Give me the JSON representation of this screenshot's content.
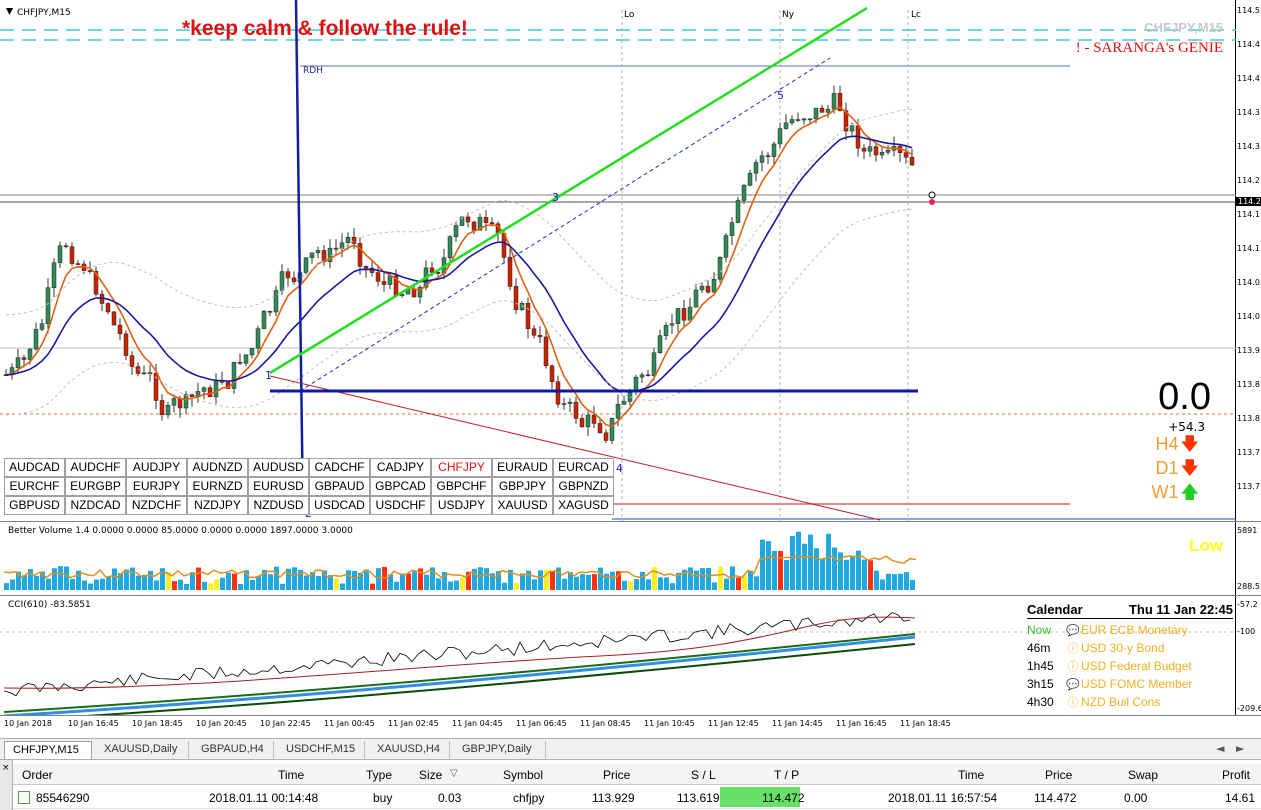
{
  "chart": {
    "title": "CHFJPY,M15",
    "banner": "*keep calm & follow the rule!",
    "watermark": "CHFJPY,M15",
    "genie": "! - SARANGA's GENIE",
    "rdh_label": "RDH",
    "sessions": [
      "Lo",
      "Ny",
      "Lc"
    ],
    "wave_labels": [
      "1",
      "2",
      "3",
      "4",
      "5"
    ],
    "big_value": "0.0",
    "pips": "+54.3",
    "timeframes": [
      {
        "label": "H4",
        "direction": "down",
        "color": "#ff3300"
      },
      {
        "label": "D1",
        "direction": "down",
        "color": "#ff3300"
      },
      {
        "label": "W1",
        "direction": "up",
        "color": "#22cc22"
      }
    ],
    "price_ticks": [
      "114.5",
      "114.4",
      "114.4",
      "114.3",
      "114.3",
      "114.2",
      "114.1",
      "114.1",
      "114.0",
      "114.0",
      "113.9",
      "113.8",
      "113.8",
      "113.7",
      "113.7"
    ],
    "current_price": "114.2",
    "symbols": [
      "AUDCAD",
      "AUDCHF",
      "AUDJPY",
      "AUDNZD",
      "AUDUSD",
      "CADCHF",
      "CADJPY",
      "CHFJPY",
      "EURAUD",
      "EURCAD",
      "EURCHF",
      "EURGBP",
      "EURJPY",
      "EURNZD",
      "EURUSD",
      "GBPAUD",
      "GBPCAD",
      "GBPCHF",
      "GBPJPY",
      "GBPNZD",
      "GBPUSD",
      "NZDCAD",
      "NZDCHF",
      "NZDJPY",
      "NZDUSD",
      "USDCAD",
      "USDCHF",
      "USDJPY",
      "XAUUSD",
      "XAGUSD"
    ],
    "active_symbol": "CHFJPY",
    "colors": {
      "bull": "#2e8b57",
      "bear": "#cc2200",
      "ema_fast": "#e06010",
      "ema_slow": "#1a1aa0",
      "trend": "#22dd22",
      "level": "#0a1aa0"
    }
  },
  "volume": {
    "title": "Better Volume 1.4 0.0000 0.0000 85.0000 0.0000 0.0000 1897.0000 3.0000",
    "label": "Low",
    "ticks": [
      "5891",
      "288.5"
    ]
  },
  "cci": {
    "title": "CCI(610) -83.5851",
    "ticks": [
      "-57.2",
      "-100",
      "-209.6"
    ]
  },
  "calendar": {
    "title": "Calendar",
    "date": "Thu 11 Jan 22:45",
    "rows": [
      {
        "time": "Now",
        "icon": "speech",
        "event": "EUR ECB Monetary",
        "color": "#f0b020",
        "time_color": "#30c030"
      },
      {
        "time": "46m",
        "icon": "info",
        "event": "USD 30-y Bond",
        "color": "#f0b020",
        "time_color": "#000000"
      },
      {
        "time": "1h45",
        "icon": "info",
        "event": "USD Federal Budget",
        "color": "#f0b020",
        "time_color": "#000000"
      },
      {
        "time": "3h15",
        "icon": "speech",
        "event": "USD FOMC Member",
        "color": "#f0b020",
        "time_color": "#000000"
      },
      {
        "time": "4h30",
        "icon": "info",
        "event": "NZD Buil Cons",
        "color": "#f0b020",
        "time_color": "#000000"
      }
    ]
  },
  "time_axis": [
    "10 Jan 2018",
    "10 Jan 16:45",
    "10 Jan 18:45",
    "10 Jan 20:45",
    "10 Jan 22:45",
    "11 Jan 00:45",
    "11 Jan 02:45",
    "11 Jan 04:45",
    "11 Jan 06:45",
    "11 Jan 08:45",
    "11 Jan 10:45",
    "11 Jan 12:45",
    "11 Jan 14:45",
    "11 Jan 16:45",
    "11 Jan 18:45"
  ],
  "tabs": [
    "CHFJPY,M15",
    "XAUUSD,Daily",
    "GBPAUD,H4",
    "USDCHF,M15",
    "XAUUSD,H4",
    "GBPJPY,Daily"
  ],
  "tab_nav": {
    "prev": "◄",
    "next": "►"
  },
  "terminal": {
    "headers": [
      "Order",
      "Time",
      "Type",
      "Size",
      "Symbol",
      "Price",
      "S / L",
      "T / P",
      "Time",
      "Price",
      "Swap",
      "Profit"
    ],
    "sort_icon": "▽",
    "row": {
      "order": "85546290",
      "time": "2018.01.11 00:14:48",
      "type": "buy",
      "size": "0.03",
      "symbol": "chfjpy",
      "price": "113.929",
      "sl": "113.619",
      "tp": "114.472",
      "close_time": "2018.01.11 16:57:54",
      "close_price": "114.472",
      "swap": "0.00",
      "profit": "14.61"
    }
  }
}
